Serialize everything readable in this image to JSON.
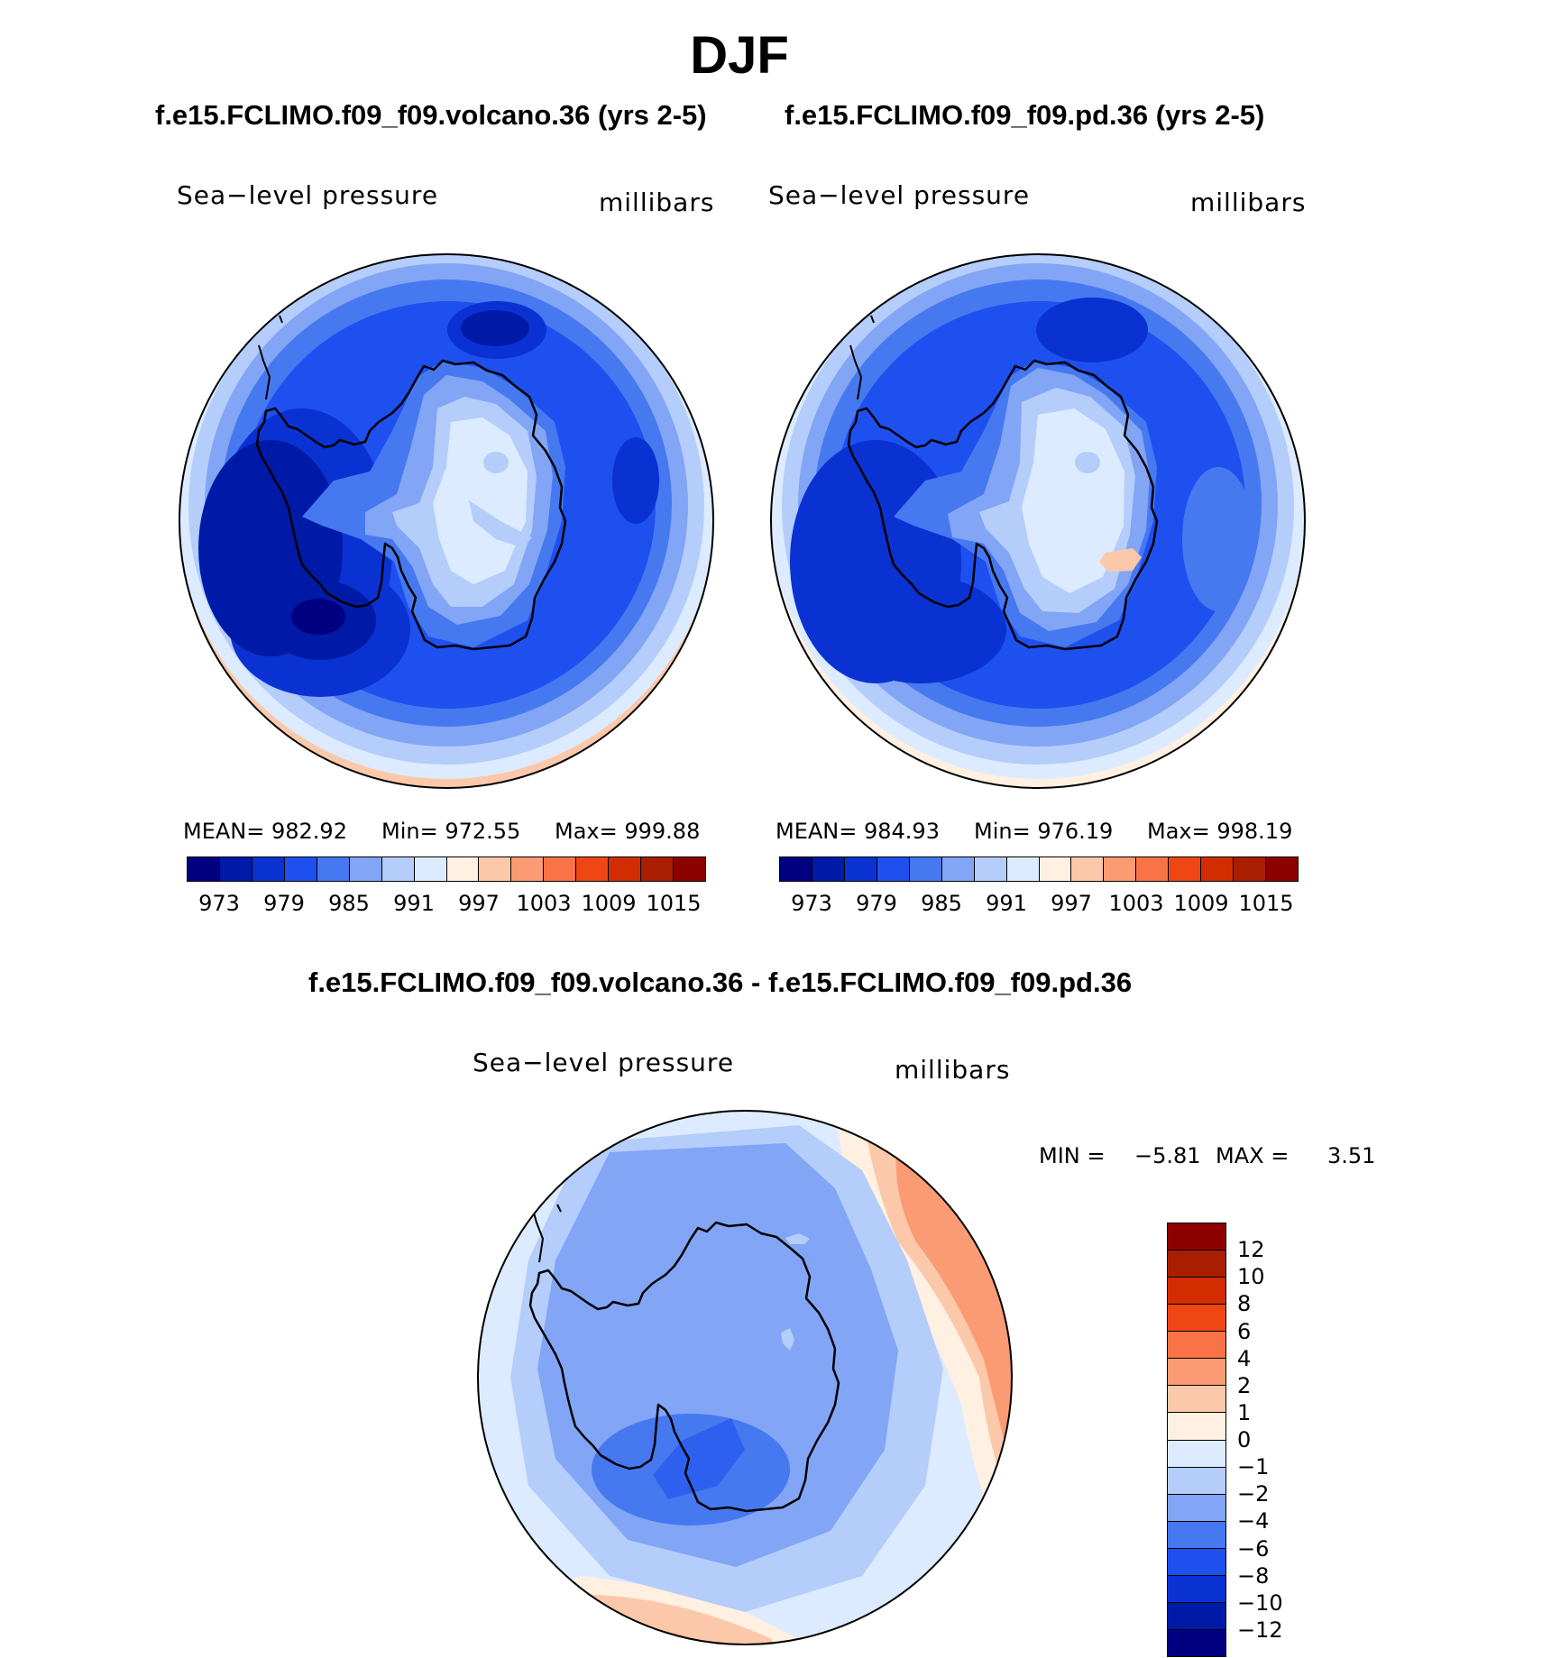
{
  "title": "DJF",
  "panels": [
    {
      "case_title": "f.e15.FCLIMO.f09_f09.volcano.36 (yrs 2-5)",
      "variable": "Sea−level pressure",
      "units": "millibars",
      "stats": {
        "mean": "MEAN= 982.92",
        "min": "Min= 972.55",
        "max": "Max= 999.88"
      }
    },
    {
      "case_title": "f.e15.FCLIMO.f09_f09.pd.36 (yrs 2-5)",
      "variable": "Sea−level pressure",
      "units": "millibars",
      "stats": {
        "mean": "MEAN= 984.93",
        "min": "Min= 976.19",
        "max": "Max= 998.19"
      }
    }
  ],
  "colorbar": {
    "colors": [
      "#000080",
      "#001aa8",
      "#0a32d2",
      "#1e50f0",
      "#4678f0",
      "#82a5f5",
      "#b4cdfa",
      "#dcebff",
      "#fff0e1",
      "#fcc8aa",
      "#fa9b73",
      "#fa7346",
      "#f04614",
      "#d22d00",
      "#aa1e00",
      "#8c0000"
    ],
    "ticks": [
      "973",
      "979",
      "985",
      "991",
      "997",
      "1003",
      "1009",
      "1015"
    ]
  },
  "difference": {
    "title": "f.e15.FCLIMO.f09_f09.volcano.36 - f.e15.FCLIMO.f09_f09.pd.36",
    "variable": "Sea−level pressure",
    "units": "millibars",
    "min_label": "MIN =",
    "min_value": "−5.81",
    "max_label": "MAX =",
    "max_value": "3.51",
    "colors_top_to_bottom": [
      "#8c0000",
      "#aa1e00",
      "#d22d00",
      "#f04614",
      "#fa7346",
      "#fa9b73",
      "#fcc8aa",
      "#fff0e1",
      "#dcebff",
      "#b4cdfa",
      "#82a5f5",
      "#4678f0",
      "#1e50f0",
      "#0a32d2",
      "#001aa8",
      "#000080"
    ],
    "ticks": [
      "12",
      "10",
      "8",
      "6",
      "4",
      "2",
      "1",
      "0",
      "−1",
      "−2",
      "−4",
      "−6",
      "−8",
      "−10",
      "−12"
    ]
  },
  "coastline_color": "#000000"
}
